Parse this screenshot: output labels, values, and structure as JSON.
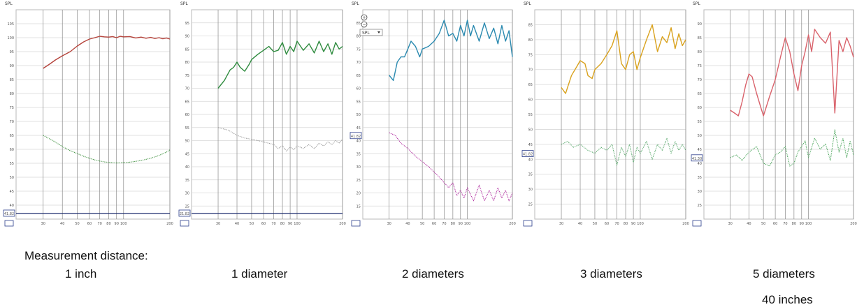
{
  "captions": {
    "heading": "Measurement distance:",
    "p1": "1 inch",
    "p2": "1 diameter",
    "p3": "2 diameters",
    "p4": "3 diameters",
    "p5": "5 diameters",
    "p5_sub": "40 inches"
  },
  "ui": {
    "spl_label": "SPL",
    "dropdown_value": "SPL",
    "zoom_in": "+",
    "zoom_out": "−"
  },
  "chart_data": [
    {
      "type": "line",
      "title": "1 inch",
      "ylabel": "SPL",
      "ylim": [
        35,
        110
      ],
      "xlim": [
        20,
        200
      ],
      "x_scale": "log",
      "y_ticks": [
        40,
        45,
        50,
        55,
        60,
        65,
        70,
        75,
        80,
        85,
        90,
        95,
        100,
        105
      ],
      "x_ticks": [
        30,
        40,
        50,
        60,
        70,
        80,
        90,
        100,
        200
      ],
      "cursor_value": "41.82",
      "grid": true,
      "series": [
        {
          "color": "#b5443c",
          "dotted": false,
          "x": [
            30,
            33,
            36,
            40,
            45,
            50,
            55,
            60,
            65,
            70,
            75,
            80,
            85,
            90,
            95,
            100,
            110,
            120,
            130,
            140,
            150,
            160,
            170,
            180,
            190,
            200
          ],
          "y": [
            89,
            90.5,
            92,
            93.5,
            95,
            97,
            98.5,
            99.5,
            100,
            100.5,
            100.3,
            100.2,
            100.4,
            100,
            100.5,
            100.3,
            100.4,
            99.9,
            100.2,
            99.8,
            100.1,
            99.7,
            100,
            99.6,
            99.9,
            99.5
          ]
        },
        {
          "color": "#3c8f3c",
          "dotted": true,
          "x": [
            30,
            35,
            40,
            45,
            50,
            55,
            60,
            65,
            70,
            75,
            80,
            90,
            100,
            110,
            120,
            130,
            140,
            150,
            160,
            170,
            180,
            190,
            200
          ],
          "y": [
            65,
            63,
            61,
            59.5,
            58.5,
            57.5,
            56.8,
            56.2,
            55.8,
            55.5,
            55.3,
            55.1,
            55.2,
            55.4,
            55.7,
            56,
            56.4,
            56.8,
            57.3,
            57.8,
            58.4,
            59,
            59.8
          ]
        }
      ]
    },
    {
      "type": "line",
      "title": "1 diameter",
      "ylabel": "SPL",
      "ylim": [
        20,
        100
      ],
      "xlim": [
        20,
        200
      ],
      "x_scale": "log",
      "y_ticks": [
        25,
        30,
        35,
        40,
        45,
        50,
        55,
        60,
        65,
        70,
        75,
        80,
        85,
        90,
        95
      ],
      "x_ticks": [
        30,
        40,
        50,
        60,
        70,
        80,
        90,
        100,
        200
      ],
      "cursor_value": "21.82",
      "grid": true,
      "series": [
        {
          "color": "#2e8b3e",
          "dotted": false,
          "x": [
            30,
            33,
            36,
            38,
            40,
            42,
            45,
            48,
            50,
            55,
            60,
            65,
            70,
            75,
            80,
            85,
            90,
            95,
            100,
            110,
            120,
            130,
            140,
            150,
            160,
            170,
            180,
            190,
            200
          ],
          "y": [
            70,
            73,
            77,
            78,
            80,
            78,
            76.5,
            79,
            81,
            83,
            84.5,
            86,
            84,
            84.5,
            87.5,
            83,
            86,
            84,
            88,
            84.5,
            87,
            83.5,
            88,
            84,
            87,
            83,
            87.5,
            85,
            86
          ]
        },
        {
          "color": "#999999",
          "dotted": true,
          "x": [
            30,
            35,
            40,
            45,
            50,
            55,
            60,
            65,
            70,
            75,
            80,
            85,
            90,
            95,
            100,
            110,
            120,
            130,
            140,
            150,
            160,
            170,
            180,
            190,
            200
          ],
          "y": [
            55,
            54,
            52,
            51,
            50.5,
            50,
            49.5,
            49,
            48.5,
            47,
            48,
            46,
            47.5,
            46.5,
            48,
            47,
            48.5,
            47,
            49,
            48,
            49.5,
            48.5,
            50,
            49,
            50.5
          ]
        }
      ]
    },
    {
      "type": "line",
      "title": "2 diameters",
      "ylabel": "SPL",
      "ylim": [
        10,
        90
      ],
      "xlim": [
        20,
        200
      ],
      "x_scale": "log",
      "y_ticks": [
        15,
        20,
        25,
        30,
        35,
        40,
        45,
        50,
        55,
        60,
        65,
        70,
        75,
        80,
        85
      ],
      "x_ticks": [
        30,
        40,
        50,
        60,
        70,
        80,
        90,
        100,
        200
      ],
      "cursor_value": "41.82",
      "grid": true,
      "series": [
        {
          "color": "#2b8ab0",
          "dotted": false,
          "x": [
            30,
            32,
            34,
            36,
            38,
            40,
            42,
            45,
            48,
            50,
            55,
            60,
            65,
            70,
            75,
            80,
            85,
            90,
            95,
            100,
            105,
            110,
            120,
            130,
            140,
            150,
            160,
            170,
            180,
            190,
            200
          ],
          "y": [
            65,
            63,
            70,
            72,
            72,
            75,
            78,
            76,
            72,
            75,
            76,
            78,
            81,
            86,
            80,
            81,
            78,
            84,
            80,
            86,
            80,
            84,
            78,
            85,
            79,
            83,
            77,
            84,
            78,
            82,
            72
          ]
        },
        {
          "color": "#b02ca0",
          "dotted": true,
          "x": [
            30,
            33,
            36,
            40,
            45,
            50,
            55,
            60,
            65,
            70,
            75,
            80,
            85,
            90,
            95,
            100,
            110,
            120,
            130,
            140,
            150,
            160,
            170,
            180,
            190,
            200
          ],
          "y": [
            43,
            42,
            39,
            37,
            34,
            32,
            30,
            28,
            26,
            24,
            22,
            24,
            19,
            21,
            18,
            22,
            17,
            23,
            17,
            21,
            17,
            22,
            18,
            21,
            17,
            20
          ]
        }
      ]
    },
    {
      "type": "line",
      "title": "3 diameters",
      "ylabel": "SPL",
      "ylim": [
        20,
        90
      ],
      "xlim": [
        20,
        200
      ],
      "x_scale": "log",
      "y_ticks": [
        25,
        30,
        35,
        40,
        45,
        50,
        55,
        60,
        65,
        70,
        75,
        80,
        85
      ],
      "x_ticks": [
        30,
        40,
        50,
        60,
        70,
        80,
        90,
        100,
        200
      ],
      "cursor_value": "41.82",
      "grid": true,
      "series": [
        {
          "color": "#d9a21e",
          "dotted": false,
          "x": [
            30,
            32,
            35,
            38,
            40,
            43,
            45,
            48,
            50,
            55,
            60,
            65,
            70,
            75,
            80,
            85,
            90,
            95,
            100,
            110,
            120,
            130,
            140,
            150,
            160,
            170,
            180,
            190,
            200
          ],
          "y": [
            64,
            62,
            68,
            71,
            73,
            72,
            68,
            67,
            70,
            72,
            75,
            78,
            83,
            72,
            70,
            75,
            76,
            70,
            74,
            80,
            85,
            76,
            81,
            79,
            84,
            77,
            82,
            78,
            80
          ]
        },
        {
          "color": "#58a86b",
          "dotted": true,
          "x": [
            30,
            33,
            36,
            40,
            45,
            50,
            55,
            60,
            65,
            70,
            75,
            80,
            85,
            90,
            95,
            100,
            110,
            120,
            130,
            140,
            150,
            160,
            170,
            180,
            190,
            200
          ],
          "y": [
            45,
            46,
            44,
            45,
            43,
            42,
            44,
            43,
            45,
            38,
            44,
            41,
            45,
            39,
            44,
            42,
            46,
            40,
            45,
            43,
            47,
            42,
            46,
            43,
            45,
            43
          ]
        }
      ]
    },
    {
      "type": "line",
      "title": "5 diameters",
      "ylabel": "SPL",
      "ylim": [
        20,
        95
      ],
      "xlim": [
        20,
        200
      ],
      "x_scale": "log",
      "y_ticks": [
        25,
        30,
        35,
        40,
        45,
        50,
        55,
        60,
        65,
        70,
        75,
        80,
        85,
        90
      ],
      "x_ticks": [
        30,
        40,
        50,
        60,
        70,
        80,
        90,
        100,
        200
      ],
      "cursor_value": "41.30",
      "grid": true,
      "series": [
        {
          "color": "#d9626b",
          "dotted": false,
          "x": [
            30,
            32,
            34,
            36,
            38,
            40,
            42,
            45,
            48,
            50,
            55,
            60,
            65,
            70,
            75,
            80,
            85,
            90,
            95,
            100,
            105,
            110,
            120,
            130,
            140,
            150,
            160,
            170,
            180,
            190,
            200
          ],
          "y": [
            59,
            58,
            57,
            62,
            68,
            72,
            71,
            65,
            60,
            57,
            64,
            70,
            78,
            85,
            80,
            72,
            66,
            75,
            80,
            86,
            80,
            88,
            85,
            83,
            87,
            58,
            84,
            80,
            85,
            82,
            78
          ]
        },
        {
          "color": "#4aa55a",
          "dotted": true,
          "x": [
            30,
            33,
            36,
            40,
            45,
            50,
            55,
            60,
            65,
            70,
            75,
            80,
            85,
            90,
            95,
            100,
            110,
            120,
            130,
            140,
            150,
            160,
            170,
            180,
            190,
            200
          ],
          "y": [
            42,
            43,
            41,
            44,
            46,
            40,
            39,
            43,
            44,
            46,
            39,
            40,
            44,
            46,
            48,
            42,
            49,
            45,
            47,
            41,
            52,
            44,
            49,
            42,
            48,
            43
          ]
        }
      ]
    }
  ]
}
